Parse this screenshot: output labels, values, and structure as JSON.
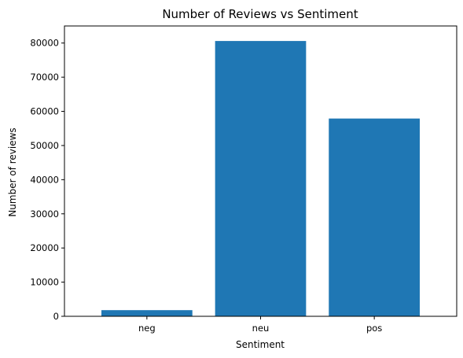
{
  "chart_data": {
    "type": "bar",
    "title": "Number of Reviews vs Sentiment",
    "xlabel": "Sentiment",
    "ylabel": "Number of reviews",
    "categories": [
      "neg",
      "neu",
      "pos"
    ],
    "values": [
      1800,
      80600,
      57900
    ],
    "ylim": [
      0,
      85000
    ],
    "yticks": [
      0,
      10000,
      20000,
      30000,
      40000,
      50000,
      60000,
      70000,
      80000
    ],
    "grid": false,
    "legend": "none",
    "bar_color": "#1f77b4"
  }
}
